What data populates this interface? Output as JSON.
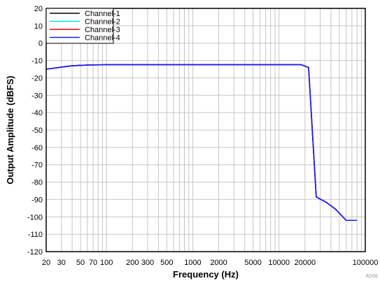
{
  "chart_data": {
    "type": "line",
    "xscale": "log",
    "xlabel": "Frequency (Hz)",
    "ylabel": "Output Amplitude (dBFS)",
    "xlim": [
      20,
      100000
    ],
    "ylim": [
      -120,
      20
    ],
    "grid": true,
    "legend_position": "top-left",
    "x_tick_labels": [
      {
        "value": 20,
        "label": "20"
      },
      {
        "value": 30,
        "label": "30"
      },
      {
        "value": 50,
        "label": "50"
      },
      {
        "value": 70,
        "label": "70"
      },
      {
        "value": 100,
        "label": "100"
      },
      {
        "value": 200,
        "label": "200"
      },
      {
        "value": 300,
        "label": "300"
      },
      {
        "value": 500,
        "label": "500"
      },
      {
        "value": 1000,
        "label": "1000"
      },
      {
        "value": 2000,
        "label": "2000"
      },
      {
        "value": 5000,
        "label": "5000"
      },
      {
        "value": 10000,
        "label": "10000"
      },
      {
        "value": 20000,
        "label": "20000"
      },
      {
        "value": 100000,
        "label": "100000"
      }
    ],
    "y_ticks": [
      20,
      10,
      0,
      -10,
      -20,
      -30,
      -40,
      -50,
      -60,
      -70,
      -80,
      -90,
      -100,
      -110,
      -120
    ],
    "series": [
      {
        "name": "Channel-1",
        "color": "#000000",
        "x": [
          20,
          30,
          40,
          60,
          100,
          1000,
          10000,
          18000,
          22000,
          27000,
          35000,
          45000,
          60000,
          80000
        ],
        "y": [
          -15,
          -13.8,
          -13,
          -12.6,
          -12.4,
          -12.4,
          -12.4,
          -12.4,
          -14,
          -88.5,
          -91.5,
          -95.5,
          -102,
          -102
        ]
      },
      {
        "name": "Channel-2",
        "color": "#00e5e5",
        "x": [
          20,
          30,
          40,
          60,
          100,
          1000,
          10000,
          18000,
          22000,
          27000,
          35000,
          45000,
          60000,
          80000
        ],
        "y": [
          -15,
          -13.8,
          -13,
          -12.6,
          -12.4,
          -12.4,
          -12.4,
          -12.4,
          -14,
          -88.5,
          -91.5,
          -95.5,
          -102,
          -102
        ]
      },
      {
        "name": "Channel-3",
        "color": "#e00000",
        "x": [
          20,
          30,
          40,
          60,
          100,
          1000,
          10000,
          18000,
          22000,
          27000,
          35000,
          45000,
          60000,
          80000
        ],
        "y": [
          -15,
          -13.8,
          -13,
          -12.6,
          -12.4,
          -12.4,
          -12.4,
          -12.4,
          -14,
          -88.5,
          -91.5,
          -95.5,
          -102,
          -102
        ]
      },
      {
        "name": "Channel-4",
        "color": "#1a1aff",
        "x": [
          20,
          30,
          40,
          60,
          100,
          1000,
          10000,
          18000,
          22000,
          27000,
          35000,
          45000,
          60000,
          80000
        ],
        "y": [
          -15,
          -13.8,
          -13,
          -12.6,
          -12.4,
          -12.4,
          -12.4,
          -12.4,
          -14,
          -88.5,
          -91.5,
          -95.5,
          -102,
          -102
        ]
      }
    ],
    "watermark": "AD06"
  }
}
